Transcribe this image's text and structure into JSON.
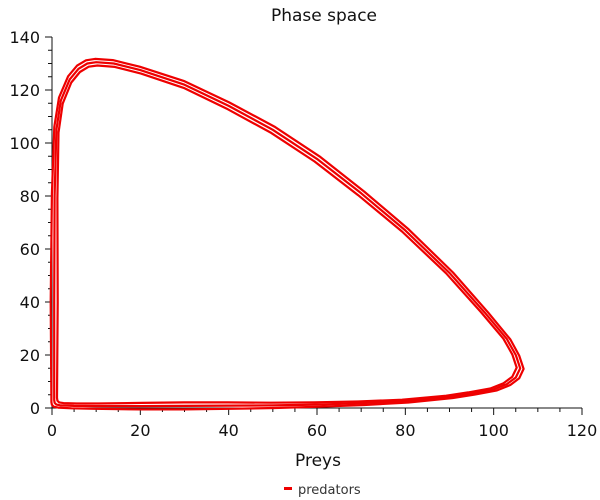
{
  "chart_data": {
    "type": "line",
    "title": "Phase space",
    "xlabel": "Preys",
    "ylabel": "",
    "xlim": [
      0,
      120
    ],
    "ylim": [
      0,
      140
    ],
    "xticks": [
      0,
      20,
      40,
      60,
      80,
      100,
      120
    ],
    "yticks": [
      0,
      20,
      40,
      60,
      80,
      100,
      120,
      140
    ],
    "grid": false,
    "legend_position": "bottom-center",
    "color": "#ee0000",
    "series": [
      {
        "name": "predators",
        "x": [
          0.5,
          0.5,
          0.6,
          1,
          2,
          4,
          6,
          8,
          10,
          14,
          20,
          30,
          40,
          50,
          60,
          70,
          80,
          90,
          98,
          103,
          105,
          106,
          105,
          103,
          100,
          95,
          90,
          80,
          70,
          60,
          50,
          40,
          30,
          20,
          10,
          5,
          2,
          1,
          0.6,
          0.5
        ],
        "y": [
          3,
          40,
          80,
          105,
          116,
          124,
          128,
          130,
          130.5,
          130,
          127.5,
          122,
          114,
          105,
          94,
          81,
          67,
          51,
          36,
          26,
          20,
          15,
          11.5,
          9,
          7,
          5.5,
          4.2,
          2.6,
          1.8,
          1.3,
          1.0,
          0.9,
          0.8,
          0.7,
          0.7,
          0.8,
          1.0,
          1.3,
          2,
          3
        ]
      }
    ]
  }
}
